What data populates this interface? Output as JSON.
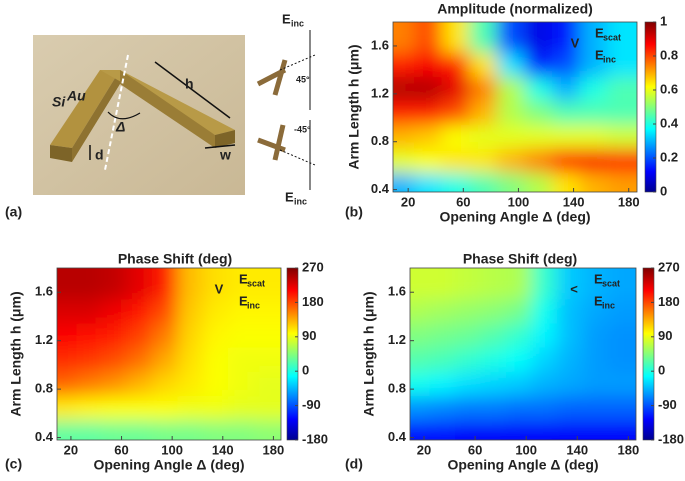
{
  "panel_labels": [
    "(a)",
    "(b)",
    "(c)",
    "(d)"
  ],
  "diagram": {
    "si": "Si",
    "au": "Au",
    "h": "h",
    "d": "d",
    "w": "w",
    "delta": "Δ",
    "e1": "E",
    "e1_sub": "inc",
    "angle1": "45°",
    "e2": "E",
    "e2_sub": "inc",
    "angle2": "-45°"
  },
  "chart_data": [
    {
      "type": "heatmap",
      "title": "Amplitude (normalized)",
      "x_label": "Opening Angle Δ (deg)",
      "y_label": "Arm Length h (μm)",
      "inset": {
        "symbol": "V",
        "e_top": "E",
        "e_top_sub": "scat",
        "e_bottom": "E",
        "e_bottom_sub": "inc"
      },
      "x": [
        15,
        35,
        55,
        75,
        95,
        115,
        135,
        155,
        175
      ],
      "y": [
        0.45,
        0.65,
        0.85,
        1.05,
        1.25,
        1.45,
        1.65
      ],
      "z": [
        [
          0.3,
          0.35,
          0.4,
          0.45,
          0.5,
          0.55,
          0.65,
          0.7,
          0.72
        ],
        [
          0.6,
          0.62,
          0.65,
          0.65,
          0.7,
          0.75,
          0.85,
          0.88,
          0.85
        ],
        [
          0.7,
          0.68,
          0.62,
          0.6,
          0.6,
          0.6,
          0.6,
          0.6,
          0.58
        ],
        [
          0.85,
          0.85,
          0.8,
          0.7,
          0.55,
          0.5,
          0.45,
          0.45,
          0.45
        ],
        [
          0.95,
          0.95,
          0.9,
          0.75,
          0.55,
          0.4,
          0.3,
          0.4,
          0.45
        ],
        [
          0.85,
          0.88,
          0.85,
          0.65,
          0.35,
          0.15,
          0.2,
          0.3,
          0.35
        ],
        [
          0.75,
          0.8,
          0.65,
          0.45,
          0.2,
          0.1,
          0.15,
          0.3,
          0.35
        ]
      ],
      "xlim": [
        9,
        186
      ],
      "ylim": [
        0.38,
        1.8
      ],
      "xticks": [
        20,
        60,
        100,
        140,
        180
      ],
      "yticks": [
        0.4,
        0.8,
        1.2,
        1.6
      ],
      "clim": [
        0,
        1
      ],
      "cticks": [
        0,
        0.2,
        0.4,
        0.6,
        0.8,
        1
      ],
      "colormap": "jet"
    },
    {
      "type": "heatmap",
      "title": "Phase Shift (deg)",
      "x_label": "Opening Angle Δ (deg)",
      "y_label": "Arm Length h (μm)",
      "inset": {
        "symbol": "V",
        "e_top": "E",
        "e_top_sub": "scat",
        "e_bottom": "E",
        "e_bottom_sub": "inc"
      },
      "x": [
        15,
        35,
        55,
        75,
        95,
        115,
        135,
        155,
        175
      ],
      "y": [
        0.45,
        0.65,
        0.85,
        1.05,
        1.25,
        1.45,
        1.65
      ],
      "z": [
        [
          30,
          30,
          35,
          35,
          40,
          40,
          45,
          45,
          50
        ],
        [
          110,
          105,
          100,
          100,
          100,
          95,
          95,
          90,
          90
        ],
        [
          170,
          160,
          150,
          135,
          120,
          110,
          100,
          95,
          90
        ],
        [
          195,
          190,
          180,
          165,
          140,
          115,
          100,
          95,
          95
        ],
        [
          215,
          210,
          200,
          185,
          160,
          120,
          105,
          100,
          100
        ],
        [
          230,
          230,
          220,
          205,
          180,
          125,
          110,
          105,
          105
        ],
        [
          245,
          245,
          240,
          225,
          200,
          130,
          115,
          110,
          110
        ]
      ],
      "xlim": [
        9,
        186
      ],
      "ylim": [
        0.38,
        1.8
      ],
      "xticks": [
        20,
        60,
        100,
        140,
        180
      ],
      "yticks": [
        0.4,
        0.8,
        1.2,
        1.6
      ],
      "clim": [
        -180,
        270
      ],
      "cticks": [
        -180,
        -90,
        0,
        90,
        180,
        270
      ],
      "colormap": "jet"
    },
    {
      "type": "heatmap",
      "title": "Phase Shift (deg)",
      "x_label": "Opening Angle Δ (deg)",
      "y_label": "Arm Length h (μm)",
      "inset": {
        "symbol": "<",
        "e_top": "E",
        "e_top_sub": "scat",
        "e_bottom": "E",
        "e_bottom_sub": "inc"
      },
      "x": [
        15,
        35,
        55,
        75,
        95,
        115,
        135,
        155,
        175
      ],
      "y": [
        0.45,
        0.65,
        0.85,
        1.05,
        1.25,
        1.45,
        1.65
      ],
      "z": [
        [
          -120,
          -120,
          -125,
          -125,
          -125,
          -125,
          -125,
          -125,
          -125
        ],
        [
          -60,
          -65,
          -70,
          -70,
          -75,
          -75,
          -80,
          -80,
          -80
        ],
        [
          -5,
          -15,
          -25,
          -30,
          -35,
          -45,
          -50,
          -55,
          -55
        ],
        [
          25,
          20,
          10,
          0,
          -10,
          -30,
          -45,
          -55,
          -60
        ],
        [
          45,
          40,
          35,
          25,
          10,
          -15,
          -40,
          -55,
          -60
        ],
        [
          65,
          60,
          55,
          50,
          40,
          -5,
          -40,
          -50,
          -55
        ],
        [
          80,
          80,
          75,
          70,
          65,
          10,
          -35,
          -45,
          -50
        ]
      ],
      "xlim": [
        9,
        186
      ],
      "ylim": [
        0.38,
        1.8
      ],
      "xticks": [
        20,
        60,
        100,
        140,
        180
      ],
      "yticks": [
        0.4,
        0.8,
        1.2,
        1.6
      ],
      "clim": [
        -180,
        270
      ],
      "cticks": [
        -180,
        -90,
        0,
        90,
        180,
        270
      ],
      "colormap": "jet"
    }
  ]
}
